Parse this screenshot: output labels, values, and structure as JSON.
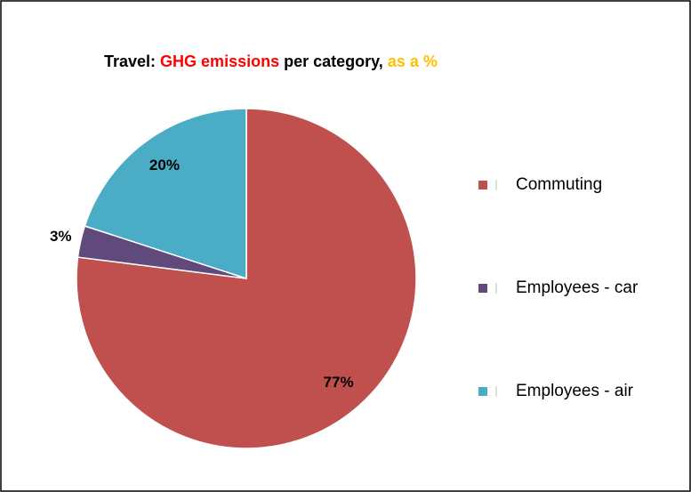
{
  "chart_data": {
    "type": "pie",
    "title_parts": [
      {
        "text": "Travel:",
        "color": "#000000"
      },
      {
        "text": "GHG emissions",
        "color": "#ff0000"
      },
      {
        "text": "per category,",
        "color": "#000000"
      },
      {
        "text": "as a %",
        "color": "#ffc000"
      }
    ],
    "categories": [
      "Commuting",
      "Employees - car",
      "Employees - air"
    ],
    "values": [
      77,
      3,
      20
    ],
    "value_labels": [
      "77%",
      "3%",
      "20%"
    ],
    "colors": [
      "#c0504d",
      "#604a7b",
      "#4bacc6"
    ],
    "legend": "right"
  }
}
